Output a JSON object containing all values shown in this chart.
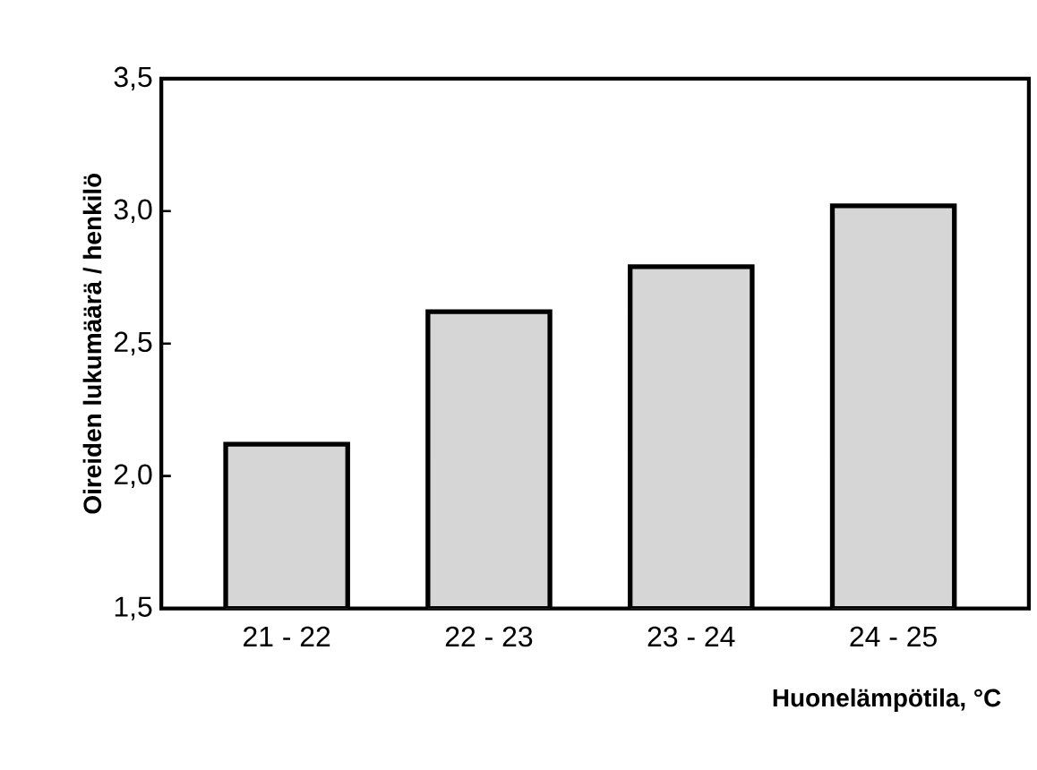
{
  "chart_data": {
    "type": "bar",
    "xlabel": "Huonelämpötila, °C",
    "ylabel": "Oireiden lukumäärä / henkilö",
    "categories": [
      "21 - 22",
      "22 - 23",
      "23 - 24",
      "24 - 25"
    ],
    "values": [
      2.12,
      2.62,
      2.79,
      3.02
    ],
    "color": "#d6d6d6",
    "ylim": [
      1.5,
      3.5
    ],
    "yticks": [
      {
        "value": 1.5,
        "label": "1,5"
      },
      {
        "value": 2.0,
        "label": "2,0"
      },
      {
        "value": 2.5,
        "label": "2,5"
      },
      {
        "value": 3.0,
        "label": "3,0"
      },
      {
        "value": 3.5,
        "label": "3,5"
      }
    ],
    "grid": false
  }
}
